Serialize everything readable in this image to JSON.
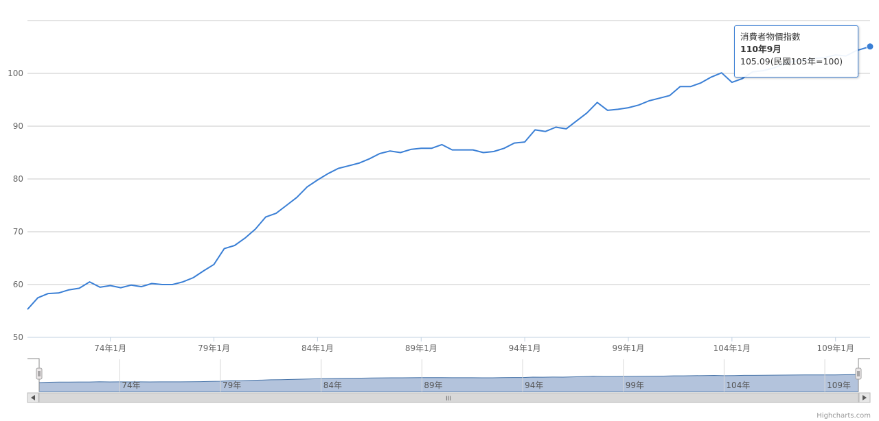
{
  "chart_data": {
    "type": "line",
    "series": [
      {
        "name": "消費者物價指數",
        "color": "#3a7fd5",
        "points": [
          [
            "70/1",
            55.3
          ],
          [
            "70/7",
            57.5
          ],
          [
            "71/1",
            58.3
          ],
          [
            "71/7",
            58.4
          ],
          [
            "72/1",
            59.0
          ],
          [
            "72/7",
            59.3
          ],
          [
            "73/1",
            60.5
          ],
          [
            "73/7",
            59.5
          ],
          [
            "74/1",
            59.8
          ],
          [
            "74/7",
            59.4
          ],
          [
            "75/1",
            59.9
          ],
          [
            "75/7",
            59.6
          ],
          [
            "76/1",
            60.2
          ],
          [
            "76/7",
            60.0
          ],
          [
            "77/1",
            60.0
          ],
          [
            "77/7",
            60.5
          ],
          [
            "78/1",
            61.3
          ],
          [
            "78/7",
            62.6
          ],
          [
            "79/1",
            63.8
          ],
          [
            "79/7",
            66.8
          ],
          [
            "80/1",
            67.4
          ],
          [
            "80/7",
            68.8
          ],
          [
            "81/1",
            70.5
          ],
          [
            "81/7",
            72.8
          ],
          [
            "82/1",
            73.5
          ],
          [
            "82/7",
            75.0
          ],
          [
            "83/1",
            76.5
          ],
          [
            "83/7",
            78.5
          ],
          [
            "84/1",
            79.8
          ],
          [
            "84/7",
            81.0
          ],
          [
            "85/1",
            82.0
          ],
          [
            "85/7",
            82.5
          ],
          [
            "86/1",
            83.0
          ],
          [
            "86/7",
            83.8
          ],
          [
            "87/1",
            84.8
          ],
          [
            "87/7",
            85.3
          ],
          [
            "88/1",
            85.0
          ],
          [
            "88/7",
            85.6
          ],
          [
            "89/1",
            85.8
          ],
          [
            "89/7",
            85.8
          ],
          [
            "90/1",
            86.5
          ],
          [
            "90/7",
            85.5
          ],
          [
            "91/1",
            85.5
          ],
          [
            "91/7",
            85.5
          ],
          [
            "92/1",
            85.0
          ],
          [
            "92/7",
            85.2
          ],
          [
            "93/1",
            85.8
          ],
          [
            "93/7",
            86.8
          ],
          [
            "94/1",
            87.0
          ],
          [
            "94/7",
            89.3
          ],
          [
            "95/1",
            89.0
          ],
          [
            "95/7",
            89.8
          ],
          [
            "96/1",
            89.5
          ],
          [
            "96/7",
            91.0
          ],
          [
            "97/1",
            92.5
          ],
          [
            "97/7",
            94.5
          ],
          [
            "98/1",
            93.0
          ],
          [
            "98/7",
            93.2
          ],
          [
            "99/1",
            93.5
          ],
          [
            "99/7",
            94.0
          ],
          [
            "100/1",
            94.8
          ],
          [
            "100/7",
            95.3
          ],
          [
            "101/1",
            95.8
          ],
          [
            "101/7",
            97.5
          ],
          [
            "102/1",
            97.5
          ],
          [
            "102/7",
            98.2
          ],
          [
            "103/1",
            99.3
          ],
          [
            "103/7",
            100.1
          ],
          [
            "104/1",
            98.3
          ],
          [
            "104/7",
            99.0
          ],
          [
            "105/1",
            100.3
          ],
          [
            "105/7",
            100.5
          ],
          [
            "106/1",
            101.0
          ],
          [
            "106/7",
            101.8
          ],
          [
            "107/1",
            102.3
          ],
          [
            "107/7",
            102.5
          ],
          [
            "108/1",
            102.8
          ],
          [
            "108/7",
            103.0
          ],
          [
            "109/1",
            103.5
          ],
          [
            "109/7",
            103.3
          ],
          [
            "110/1",
            104.3
          ],
          [
            "110/9",
            105.09
          ]
        ]
      }
    ],
    "x_axis": {
      "type": "date",
      "start": "70/1",
      "end": "110/9",
      "tick_labels": [
        "74年1月",
        "79年1月",
        "84年1月",
        "89年1月",
        "94年1月",
        "99年1月",
        "104年1月",
        "109年1月"
      ]
    },
    "y_axis": {
      "range": [
        50,
        110
      ],
      "tick_labels": [
        "50",
        "60",
        "70",
        "80",
        "90",
        "100"
      ]
    },
    "grid": true,
    "navigator": {
      "tick_labels": [
        "74年",
        "79年",
        "84年",
        "89年",
        "94年",
        "99年",
        "104年",
        "109年"
      ],
      "scrollbar_label": "III"
    },
    "tooltip": {
      "series": "消費者物價指數",
      "date": "110年9月",
      "value": "105.09(民國105年=100)"
    },
    "credits": "Highcharts.com"
  }
}
